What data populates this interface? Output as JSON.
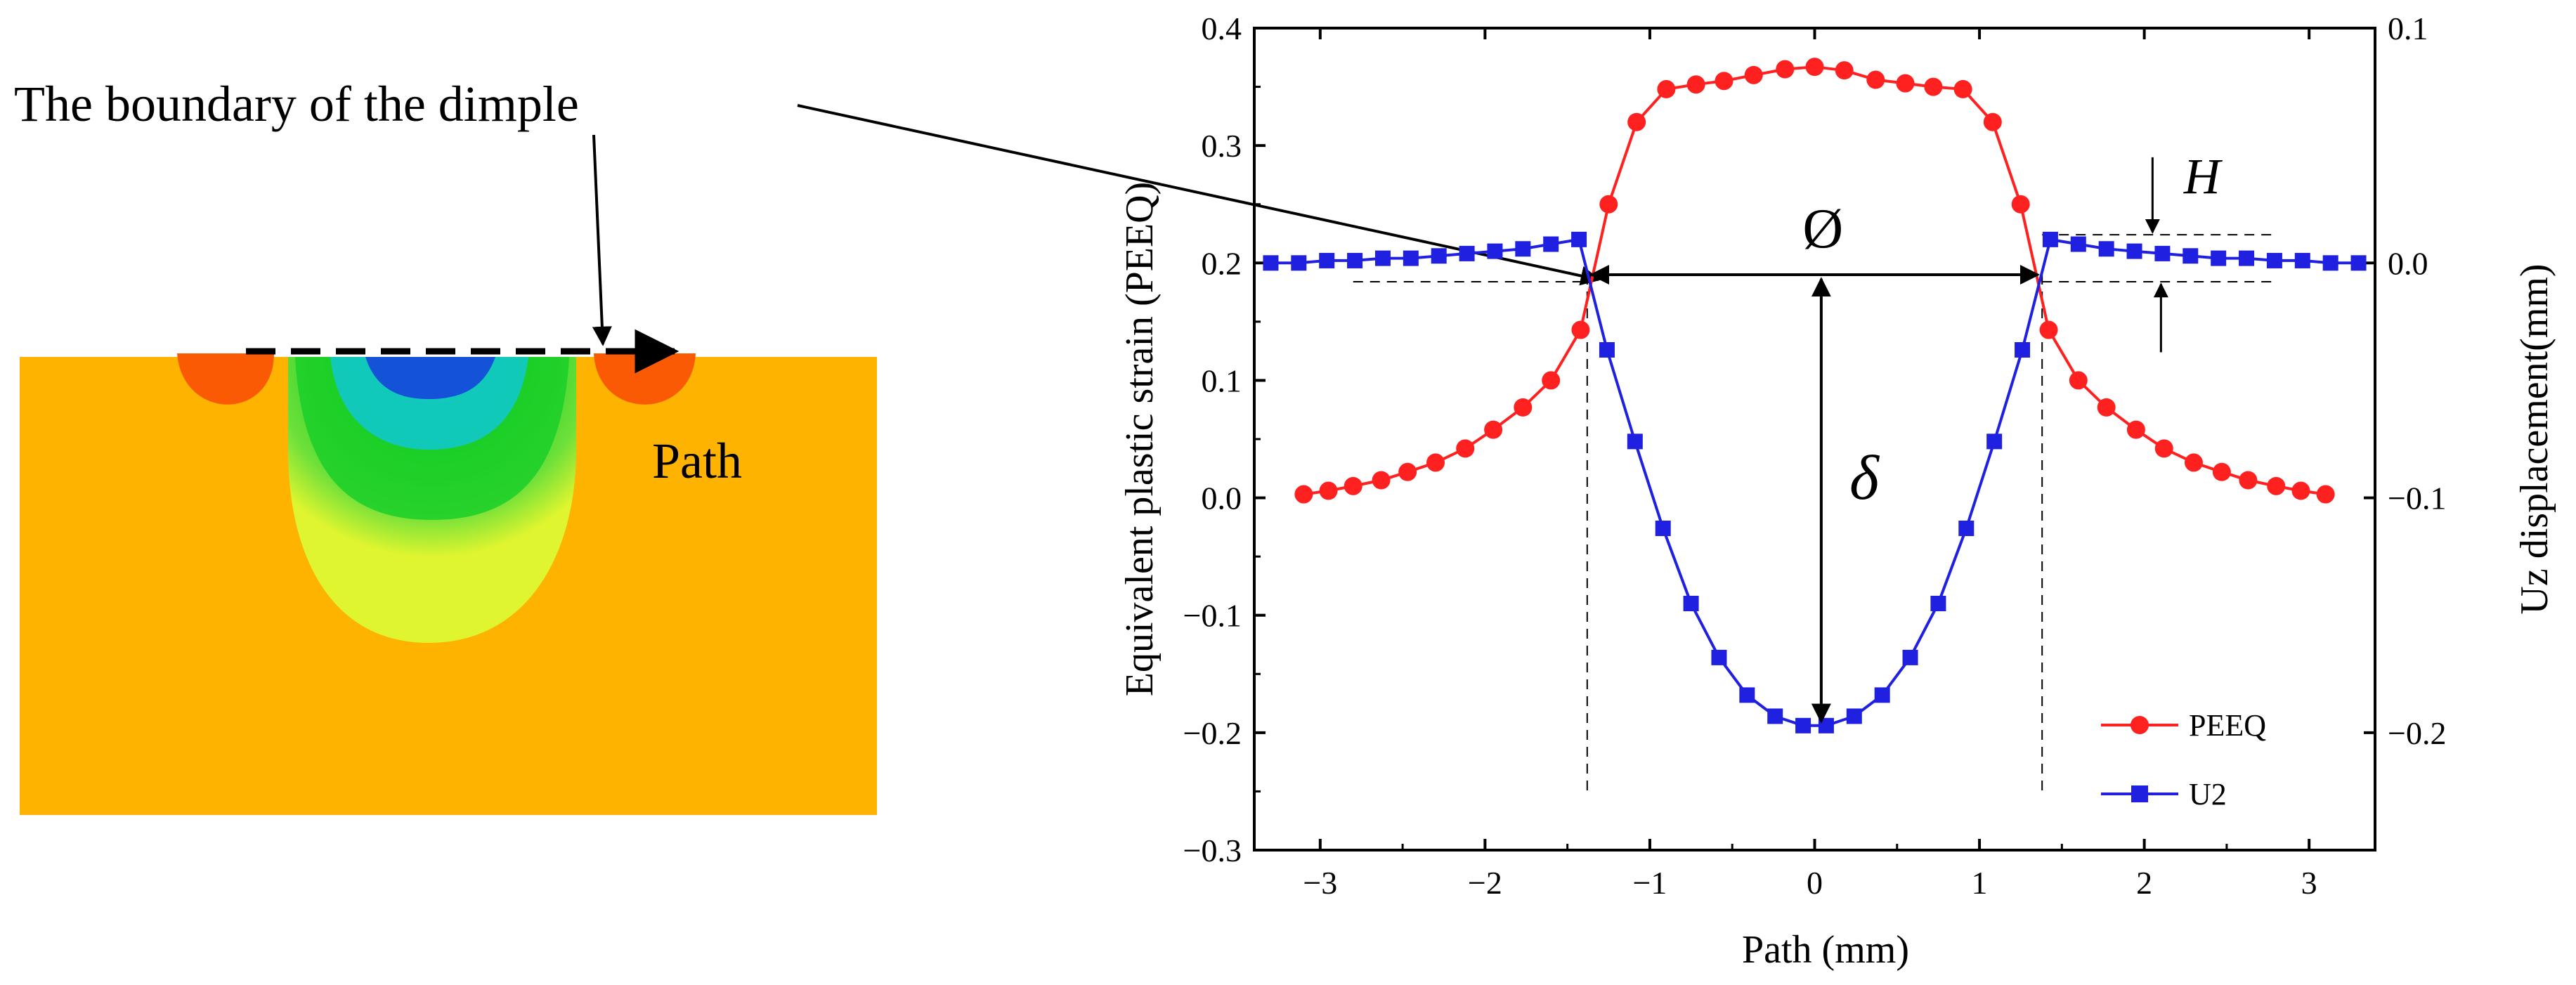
{
  "contour": {
    "annotation": "The boundary of the dimple",
    "path_label": "Path",
    "colors": {
      "base": "#FDB300",
      "hot": "#FB5A05",
      "yellow": "#DEF52F",
      "green": "#1ACF28",
      "cyan": "#10C8D2",
      "blue": "#1546DB"
    }
  },
  "chart_data": {
    "type": "line",
    "xlabel": "Path (mm)",
    "ylabel_left": "Equivalent plastic strain (PEEQ)",
    "ylabel_right": "Uz displacement(mm)",
    "xlim": [
      -3.4,
      3.4
    ],
    "ylim_left": [
      -0.3,
      0.4
    ],
    "ylim_right": [
      -0.25,
      0.1
    ],
    "x_ticks": [
      "-3",
      "-2",
      "-1",
      "0",
      "1",
      "2",
      "3"
    ],
    "x_tick_values": [
      -3,
      -2,
      -1,
      0,
      1,
      2,
      3
    ],
    "y_left_ticks": [
      "-0.3",
      "-0.2",
      "-0.1",
      "0.0",
      "0.1",
      "0.2",
      "0.3",
      "0.4"
    ],
    "y_left_tick_values": [
      -0.3,
      -0.2,
      -0.1,
      0.0,
      0.1,
      0.2,
      0.3,
      0.4
    ],
    "y_right_ticks": [
      "-0.2",
      "-0.1",
      "0.0",
      "0.1"
    ],
    "y_right_tick_values": [
      -0.2,
      -0.1,
      0.0,
      0.1
    ],
    "legend_position": "bottom-right",
    "series": [
      {
        "name": "PEEQ",
        "axis": "left",
        "color": "#FF2020",
        "marker": "circle",
        "x": [
          -3.1,
          -2.95,
          -2.8,
          -2.63,
          -2.47,
          -2.3,
          -2.12,
          -1.95,
          -1.77,
          -1.6,
          -1.42,
          -1.25,
          -1.08,
          -0.9,
          -0.72,
          -0.55,
          -0.37,
          -0.18,
          0.0,
          0.18,
          0.37,
          0.55,
          0.72,
          0.9,
          1.08,
          1.25,
          1.42,
          1.6,
          1.77,
          1.95,
          2.12,
          2.3,
          2.47,
          2.63,
          2.8,
          2.95,
          3.1
        ],
        "y": [
          0.003,
          0.006,
          0.01,
          0.015,
          0.022,
          0.03,
          0.042,
          0.058,
          0.077,
          0.1,
          0.143,
          0.25,
          0.32,
          0.348,
          0.352,
          0.355,
          0.36,
          0.365,
          0.367,
          0.364,
          0.356,
          0.353,
          0.35,
          0.348,
          0.32,
          0.25,
          0.143,
          0.1,
          0.077,
          0.058,
          0.042,
          0.03,
          0.022,
          0.015,
          0.01,
          0.006,
          0.003
        ]
      },
      {
        "name": "U2",
        "axis": "right",
        "color": "#1F20E0",
        "marker": "square",
        "x": [
          -3.3,
          -3.13,
          -2.96,
          -2.79,
          -2.62,
          -2.45,
          -2.28,
          -2.11,
          -1.94,
          -1.77,
          -1.6,
          -1.43,
          -1.26,
          -1.09,
          -0.92,
          -0.75,
          -0.58,
          -0.41,
          -0.24,
          -0.07,
          0.07,
          0.24,
          0.41,
          0.58,
          0.75,
          0.92,
          1.09,
          1.26,
          1.43,
          1.6,
          1.77,
          1.94,
          2.11,
          2.28,
          2.45,
          2.62,
          2.79,
          2.96,
          3.13,
          3.3
        ],
        "y": [
          0.0,
          0.0,
          0.001,
          0.001,
          0.002,
          0.002,
          0.003,
          0.004,
          0.005,
          0.006,
          0.008,
          0.01,
          -0.037,
          -0.076,
          -0.113,
          -0.145,
          -0.168,
          -0.184,
          -0.193,
          -0.197,
          -0.197,
          -0.193,
          -0.184,
          -0.168,
          -0.145,
          -0.113,
          -0.076,
          -0.037,
          0.01,
          0.008,
          0.006,
          0.005,
          0.004,
          0.003,
          0.002,
          0.002,
          0.001,
          0.001,
          0.0,
          0.0
        ]
      }
    ],
    "annotations": {
      "diameter": "Ø",
      "depth": "δ",
      "height": "H"
    }
  }
}
